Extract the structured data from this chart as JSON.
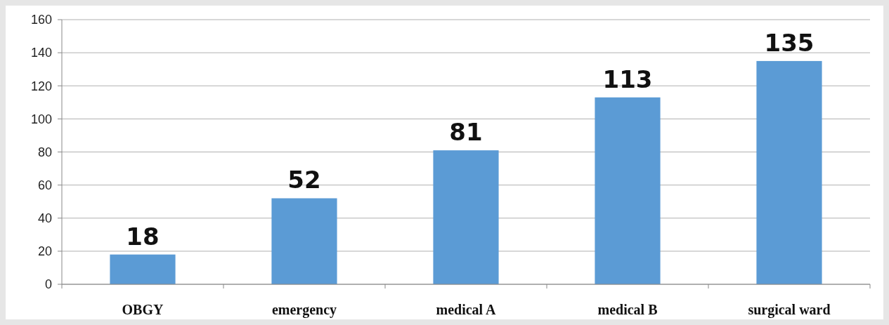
{
  "chart_data": {
    "type": "bar",
    "categories": [
      "OBGY",
      "emergency",
      "medical A",
      "medical B",
      "surgical ward"
    ],
    "values": [
      18,
      52,
      81,
      113,
      135
    ],
    "color": "#5b9bd5",
    "ylim": [
      0,
      160
    ],
    "yticks": [
      0,
      20,
      40,
      60,
      80,
      100,
      120,
      140,
      160
    ],
    "grid": "y",
    "data_labels": true
  }
}
